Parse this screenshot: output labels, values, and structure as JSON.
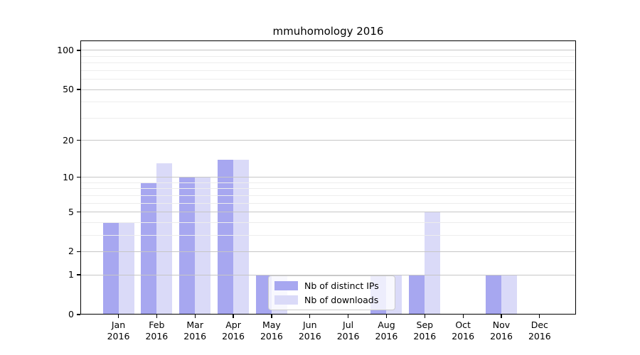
{
  "title": "mmuhomology 2016",
  "colors": {
    "distinct_ips": "#a7a7f0",
    "downloads": "#dadaf8",
    "grid_major": "#c6c6c6",
    "grid_minor": "#ededed",
    "axis": "#000000",
    "background": "#ffffff",
    "legend_border": "#cbcbcb"
  },
  "chart_data": {
    "type": "bar",
    "title": "mmuhomology 2016",
    "categories": [
      "Jan",
      "Feb",
      "Mar",
      "Apr",
      "May",
      "Jun",
      "Jul",
      "Aug",
      "Sep",
      "Oct",
      "Nov",
      "Dec"
    ],
    "year_label": "2016",
    "series": [
      {
        "name": "Nb of distinct IPs",
        "color_key": "distinct_ips",
        "values": [
          4,
          9,
          10,
          14,
          1,
          0,
          0,
          1,
          1,
          0,
          1,
          0
        ]
      },
      {
        "name": "Nb of downloads",
        "color_key": "downloads",
        "values": [
          4,
          13,
          10,
          14,
          1,
          0,
          0,
          1,
          5,
          0,
          1,
          0
        ]
      }
    ],
    "xlabel": "",
    "ylabel": "",
    "yscale": "log10(1+value)",
    "yticks": [
      0,
      1,
      2,
      5,
      10,
      20,
      50,
      100
    ],
    "yticks_minor": [
      3,
      4,
      6,
      7,
      8,
      9,
      30,
      40,
      60,
      70,
      80,
      90
    ],
    "ylim": [
      0,
      119
    ],
    "grid": true,
    "legend_position": "lower center"
  }
}
